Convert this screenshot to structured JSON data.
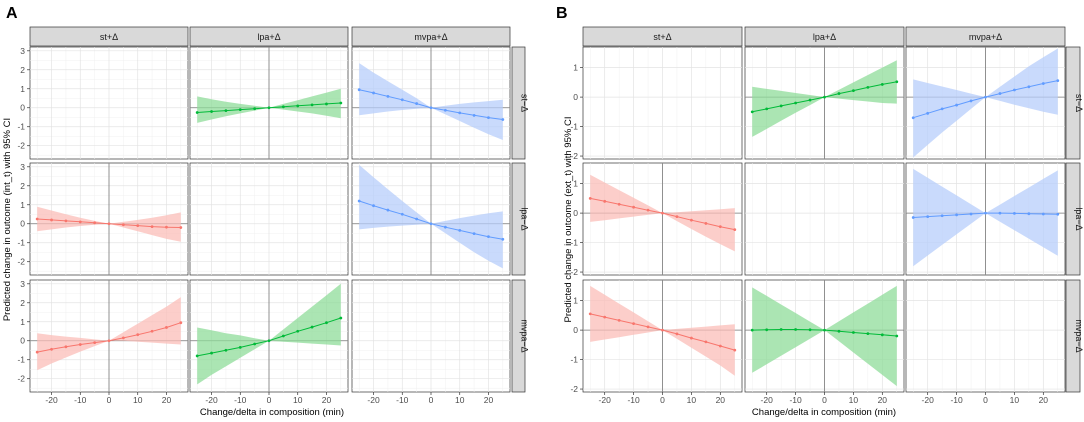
{
  "chart_data": [
    {
      "type": "line",
      "panel_label": "A",
      "xlabel": "Change/delta in composition (min)",
      "ylabel": "Predicted change in outcome (int_t) with 95% CI",
      "xlim": [
        -27.5,
        27.5
      ],
      "ylim": [
        -2.7,
        3.2
      ],
      "x_ticks": [
        -20,
        -10,
        0,
        10,
        20
      ],
      "x_tick_labels": [
        "-20",
        "-10",
        "0",
        "10",
        "20"
      ],
      "y_ticks": [
        -2,
        -1,
        0,
        1,
        2,
        3
      ],
      "y_tick_labels": [
        "-2",
        "-1",
        "0",
        "1",
        "2",
        "3"
      ],
      "column_strips": [
        "st+Δ",
        "lpa+Δ",
        "mvpa+Δ"
      ],
      "row_strips": [
        "st−Δ",
        "lpa−Δ",
        "mvpa−Δ"
      ],
      "x": [
        -25,
        -20,
        -15,
        -10,
        -5,
        0,
        5,
        10,
        15,
        20,
        25
      ],
      "cells": [
        {
          "row": 0,
          "col": 0,
          "empty": true
        },
        {
          "row": 0,
          "col": 1,
          "color": "#00BA38",
          "fill": "#8fdc9a",
          "y": [
            -0.25,
            -0.2,
            -0.15,
            -0.1,
            -0.05,
            0,
            0.05,
            0.1,
            0.15,
            0.2,
            0.25
          ],
          "lower": [
            -0.8,
            -0.62,
            -0.45,
            -0.3,
            -0.15,
            0,
            -0.1,
            -0.2,
            -0.3,
            -0.42,
            -0.55
          ],
          "upper": [
            0.6,
            0.45,
            0.32,
            0.2,
            0.1,
            0,
            0.2,
            0.4,
            0.6,
            0.8,
            1.0
          ]
        },
        {
          "row": 0,
          "col": 2,
          "color": "#619CFF",
          "fill": "#b7cdfb",
          "y": [
            0.95,
            0.78,
            0.6,
            0.42,
            0.22,
            0,
            -0.13,
            -0.27,
            -0.4,
            -0.52,
            -0.62
          ],
          "lower": [
            -0.4,
            -0.3,
            -0.2,
            -0.12,
            -0.05,
            0,
            -0.35,
            -0.7,
            -1.05,
            -1.4,
            -1.7
          ],
          "upper": [
            2.35,
            1.85,
            1.4,
            0.95,
            0.5,
            0,
            0.1,
            0.2,
            0.28,
            0.35,
            0.42
          ]
        },
        {
          "row": 1,
          "col": 0,
          "color": "#F8766D",
          "fill": "#fbbdb8",
          "y": [
            0.25,
            0.2,
            0.15,
            0.1,
            0.05,
            0,
            -0.05,
            -0.1,
            -0.15,
            -0.18,
            -0.2
          ],
          "lower": [
            -0.4,
            -0.3,
            -0.2,
            -0.12,
            -0.05,
            0,
            -0.2,
            -0.4,
            -0.6,
            -0.8,
            -0.95
          ],
          "upper": [
            0.9,
            0.7,
            0.5,
            0.32,
            0.15,
            0,
            0.1,
            0.2,
            0.32,
            0.45,
            0.6
          ]
        },
        {
          "row": 1,
          "col": 1,
          "empty": true
        },
        {
          "row": 1,
          "col": 2,
          "color": "#619CFF",
          "fill": "#b7cdfb",
          "y": [
            1.2,
            0.95,
            0.72,
            0.5,
            0.25,
            0,
            -0.18,
            -0.35,
            -0.52,
            -0.68,
            -0.82
          ],
          "lower": [
            -0.3,
            -0.22,
            -0.15,
            -0.1,
            -0.05,
            0,
            -0.5,
            -1.0,
            -1.5,
            -1.95,
            -2.35
          ],
          "upper": [
            3.1,
            2.45,
            1.82,
            1.2,
            0.6,
            0,
            0.15,
            0.3,
            0.43,
            0.55,
            0.65
          ]
        },
        {
          "row": 2,
          "col": 0,
          "color": "#F8766D",
          "fill": "#fbbdb8",
          "y": [
            -0.6,
            -0.45,
            -0.32,
            -0.2,
            -0.1,
            0,
            0.15,
            0.32,
            0.5,
            0.7,
            0.95
          ],
          "lower": [
            -1.55,
            -1.2,
            -0.88,
            -0.57,
            -0.28,
            0,
            0,
            -0.05,
            -0.1,
            -0.15,
            -0.2
          ],
          "upper": [
            0.4,
            0.3,
            0.22,
            0.15,
            0.07,
            0,
            0.45,
            0.9,
            1.35,
            1.8,
            2.3
          ]
        },
        {
          "row": 2,
          "col": 1,
          "color": "#00BA38",
          "fill": "#8fdc9a",
          "y": [
            -0.8,
            -0.65,
            -0.5,
            -0.35,
            -0.17,
            0,
            0.25,
            0.5,
            0.72,
            0.95,
            1.2
          ],
          "lower": [
            -2.3,
            -1.8,
            -1.35,
            -0.9,
            -0.45,
            0,
            -0.05,
            -0.1,
            -0.15,
            -0.2,
            -0.25
          ],
          "upper": [
            0.7,
            0.55,
            0.4,
            0.28,
            0.13,
            0,
            0.6,
            1.2,
            1.8,
            2.4,
            3.0
          ]
        },
        {
          "row": 2,
          "col": 2,
          "empty": true
        }
      ]
    },
    {
      "type": "line",
      "panel_label": "B",
      "xlabel": "Change/delta in composition (min)",
      "ylabel": "Predicted change in outcome (ext_t) with 95% CI",
      "xlim": [
        -27.5,
        27.5
      ],
      "ylim": [
        -2.1,
        1.7
      ],
      "x_ticks": [
        -20,
        -10,
        0,
        10,
        20
      ],
      "x_tick_labels": [
        "-20",
        "-10",
        "0",
        "10",
        "20"
      ],
      "y_ticks": [
        -2,
        -1,
        0,
        1
      ],
      "y_tick_labels": [
        "-2",
        "-1",
        "0",
        "1"
      ],
      "column_strips": [
        "st+Δ",
        "lpa+Δ",
        "mvpa+Δ"
      ],
      "row_strips": [
        "st−Δ",
        "lpa−Δ",
        "mvpa−Δ"
      ],
      "x": [
        -25,
        -20,
        -15,
        -10,
        -5,
        0,
        5,
        10,
        15,
        20,
        25
      ],
      "cells": [
        {
          "row": 0,
          "col": 0,
          "empty": true
        },
        {
          "row": 0,
          "col": 1,
          "color": "#00BA38",
          "fill": "#8fdc9a",
          "y": [
            -0.5,
            -0.4,
            -0.3,
            -0.2,
            -0.1,
            0,
            0.12,
            0.22,
            0.33,
            0.43,
            0.52
          ],
          "lower": [
            -1.35,
            -1.08,
            -0.8,
            -0.53,
            -0.27,
            0,
            -0.05,
            -0.1,
            -0.15,
            -0.2,
            -0.22
          ],
          "upper": [
            0.35,
            0.28,
            0.21,
            0.14,
            0.07,
            0,
            0.25,
            0.5,
            0.75,
            1.0,
            1.25
          ]
        },
        {
          "row": 0,
          "col": 2,
          "color": "#619CFF",
          "fill": "#b7cdfb",
          "y": [
            -0.7,
            -0.55,
            -0.4,
            -0.27,
            -0.13,
            0,
            0.12,
            0.24,
            0.35,
            0.46,
            0.56
          ],
          "lower": [
            -2.05,
            -1.62,
            -1.2,
            -0.8,
            -0.4,
            0,
            -0.13,
            -0.26,
            -0.38,
            -0.5,
            -0.6
          ],
          "upper": [
            0.6,
            0.48,
            0.36,
            0.24,
            0.12,
            0,
            0.35,
            0.7,
            1.05,
            1.35,
            1.65
          ]
        },
        {
          "row": 1,
          "col": 0,
          "color": "#F8766D",
          "fill": "#fbbdb8",
          "y": [
            0.5,
            0.4,
            0.3,
            0.2,
            0.1,
            0,
            -0.12,
            -0.24,
            -0.35,
            -0.46,
            -0.56
          ],
          "lower": [
            -0.3,
            -0.24,
            -0.18,
            -0.12,
            -0.06,
            0,
            -0.27,
            -0.54,
            -0.8,
            -1.05,
            -1.3
          ],
          "upper": [
            1.3,
            1.04,
            0.78,
            0.52,
            0.26,
            0,
            0.03,
            0.06,
            0.1,
            0.13,
            0.17
          ]
        },
        {
          "row": 1,
          "col": 1,
          "empty": true
        },
        {
          "row": 1,
          "col": 2,
          "color": "#619CFF",
          "fill": "#b7cdfb",
          "y": [
            -0.15,
            -0.12,
            -0.09,
            -0.06,
            -0.03,
            0,
            0,
            -0.01,
            -0.02,
            -0.03,
            -0.04
          ],
          "lower": [
            -1.8,
            -1.44,
            -1.08,
            -0.72,
            -0.36,
            0,
            -0.29,
            -0.58,
            -0.87,
            -1.16,
            -1.45
          ],
          "upper": [
            1.5,
            1.2,
            0.9,
            0.6,
            0.3,
            0,
            0.29,
            0.58,
            0.87,
            1.16,
            1.45
          ]
        },
        {
          "row": 2,
          "col": 0,
          "color": "#F8766D",
          "fill": "#fbbdb8",
          "y": [
            0.55,
            0.44,
            0.33,
            0.22,
            0.11,
            0,
            -0.13,
            -0.27,
            -0.4,
            -0.54,
            -0.68
          ],
          "lower": [
            -0.4,
            -0.32,
            -0.24,
            -0.16,
            -0.08,
            0,
            -0.3,
            -0.6,
            -0.9,
            -1.2,
            -1.55
          ],
          "upper": [
            1.5,
            1.2,
            0.9,
            0.6,
            0.3,
            0,
            0.04,
            0.08,
            0.12,
            0.16,
            0.2
          ]
        },
        {
          "row": 2,
          "col": 1,
          "color": "#00BA38",
          "fill": "#8fdc9a",
          "y": [
            0,
            0.01,
            0.02,
            0.02,
            0.01,
            0,
            -0.04,
            -0.08,
            -0.12,
            -0.16,
            -0.2
          ],
          "lower": [
            -1.45,
            -1.16,
            -0.87,
            -0.58,
            -0.29,
            0,
            -0.38,
            -0.76,
            -1.14,
            -1.52,
            -1.9
          ],
          "upper": [
            1.45,
            1.16,
            0.87,
            0.58,
            0.29,
            0,
            0.3,
            0.6,
            0.9,
            1.2,
            1.5
          ]
        },
        {
          "row": 2,
          "col": 2,
          "empty": true
        }
      ]
    }
  ]
}
